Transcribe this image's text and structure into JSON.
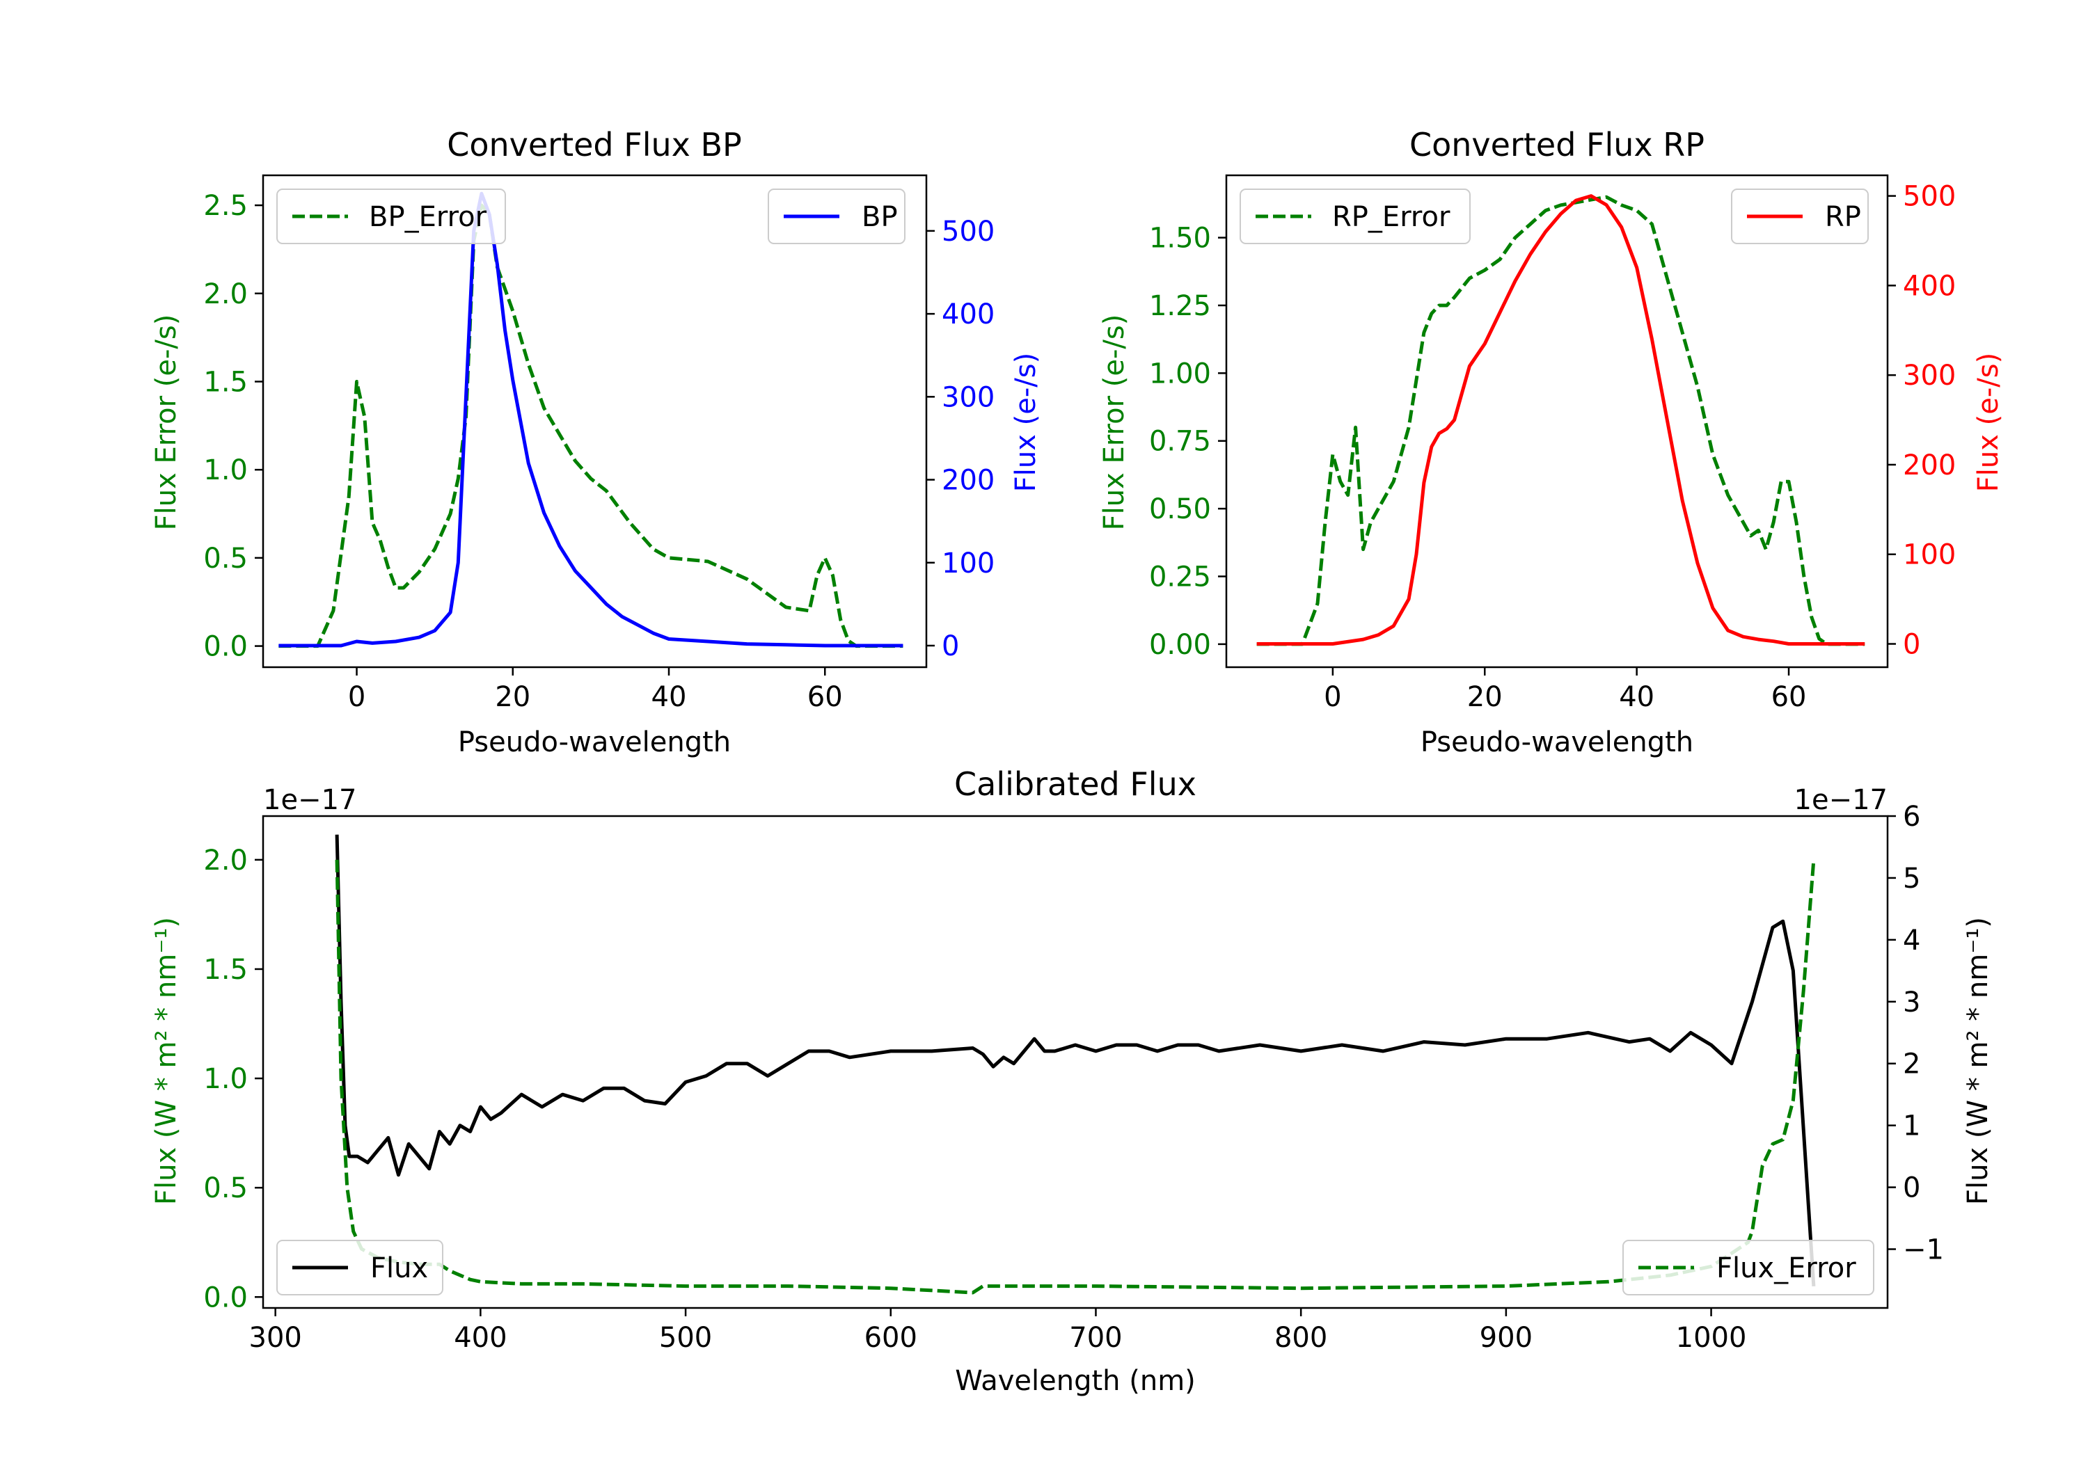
{
  "colors": {
    "green": "#008000",
    "blue": "#0000ff",
    "red": "#ff0000",
    "black": "#000000"
  },
  "chart_data": [
    {
      "type": "line",
      "title": "Converted Flux BP",
      "xlabel": "Pseudo-wavelength",
      "xlim": [
        -12,
        73
      ],
      "xticks": [
        0,
        20,
        40,
        60
      ],
      "left_axis": {
        "label": "Flux Error (e-/s)",
        "color": "#008000",
        "ylim": [
          -0.12,
          2.67
        ],
        "ticks": [
          "0.0",
          "0.5",
          "1.0",
          "1.5",
          "2.0",
          "2.5"
        ]
      },
      "right_axis": {
        "label": "Flux (e-/s)",
        "color": "#0000ff",
        "ylim": [
          -26,
          567
        ],
        "ticks": [
          "0",
          "100",
          "200",
          "300",
          "400",
          "500"
        ]
      },
      "series": [
        {
          "name": "BP_Error",
          "axis": "left",
          "color": "#008000",
          "dashed": true,
          "legend": "upper left",
          "x": [
            -10,
            -5,
            -3,
            -1,
            0,
            1,
            2,
            3,
            4,
            5,
            6,
            8,
            10,
            12,
            13,
            14,
            15,
            16,
            17,
            18,
            20,
            22,
            24,
            26,
            28,
            30,
            32,
            35,
            38,
            40,
            45,
            50,
            55,
            58,
            59,
            60,
            61,
            62,
            63,
            64,
            70
          ],
          "values": [
            0,
            0,
            0.2,
            0.85,
            1.5,
            1.3,
            0.7,
            0.6,
            0.45,
            0.33,
            0.33,
            0.42,
            0.55,
            0.75,
            0.95,
            1.3,
            2.3,
            2.5,
            2.45,
            2.15,
            1.9,
            1.6,
            1.35,
            1.2,
            1.05,
            0.95,
            0.88,
            0.7,
            0.55,
            0.5,
            0.48,
            0.38,
            0.22,
            0.2,
            0.4,
            0.5,
            0.4,
            0.15,
            0.03,
            0,
            0
          ]
        },
        {
          "name": "BP",
          "axis": "right",
          "color": "#0000ff",
          "dashed": false,
          "legend": "upper right",
          "x": [
            -10,
            -2,
            0,
            2,
            5,
            8,
            10,
            12,
            13,
            14,
            15,
            16,
            17,
            18,
            19,
            20,
            22,
            24,
            26,
            28,
            30,
            32,
            34,
            36,
            38,
            40,
            45,
            50,
            55,
            60,
            65,
            70
          ],
          "values": [
            0,
            0,
            5,
            3,
            5,
            10,
            18,
            40,
            100,
            300,
            500,
            545,
            520,
            460,
            380,
            320,
            220,
            160,
            120,
            90,
            70,
            50,
            35,
            25,
            15,
            8,
            5,
            2,
            1,
            0,
            0,
            0
          ]
        }
      ]
    },
    {
      "type": "line",
      "title": "Converted Flux RP",
      "xlabel": "Pseudo-wavelength",
      "xlim": [
        -14,
        73
      ],
      "xticks": [
        0,
        20,
        40,
        60
      ],
      "left_axis": {
        "label": "Flux Error (e-/s)",
        "color": "#008000",
        "ylim": [
          -0.085,
          1.73
        ],
        "ticks": [
          "0.00",
          "0.25",
          "0.50",
          "0.75",
          "1.00",
          "1.25",
          "1.50"
        ]
      },
      "right_axis": {
        "label": "Flux (e-/s)",
        "color": "#ff0000",
        "ylim": [
          -26,
          523
        ],
        "ticks": [
          "0",
          "100",
          "200",
          "300",
          "400",
          "500"
        ]
      },
      "series": [
        {
          "name": "RP_Error",
          "axis": "left",
          "color": "#008000",
          "dashed": true,
          "legend": "upper left",
          "x": [
            -10,
            -4,
            -2,
            -1,
            0,
            1,
            2,
            3,
            4,
            5,
            6,
            8,
            10,
            12,
            13,
            14,
            15,
            16,
            18,
            20,
            22,
            24,
            26,
            28,
            30,
            32,
            34,
            36,
            38,
            40,
            42,
            44,
            46,
            48,
            50,
            52,
            54,
            55,
            56,
            57,
            58,
            59,
            60,
            61,
            62,
            63,
            64,
            65,
            70
          ],
          "values": [
            0,
            0,
            0.15,
            0.45,
            0.7,
            0.6,
            0.55,
            0.8,
            0.35,
            0.45,
            0.5,
            0.6,
            0.8,
            1.15,
            1.22,
            1.25,
            1.25,
            1.28,
            1.35,
            1.38,
            1.42,
            1.5,
            1.55,
            1.6,
            1.62,
            1.63,
            1.64,
            1.65,
            1.62,
            1.6,
            1.55,
            1.35,
            1.15,
            0.95,
            0.7,
            0.55,
            0.45,
            0.4,
            0.42,
            0.35,
            0.45,
            0.6,
            0.6,
            0.45,
            0.25,
            0.1,
            0.02,
            0,
            0
          ]
        },
        {
          "name": "RP",
          "axis": "right",
          "color": "#ff0000",
          "dashed": false,
          "legend": "upper right",
          "x": [
            -10,
            0,
            4,
            6,
            8,
            10,
            11,
            12,
            13,
            14,
            15,
            16,
            18,
            20,
            22,
            24,
            26,
            28,
            30,
            32,
            34,
            36,
            38,
            40,
            42,
            44,
            46,
            48,
            50,
            52,
            54,
            56,
            58,
            60,
            65,
            70
          ],
          "values": [
            0,
            0,
            5,
            10,
            20,
            50,
            100,
            180,
            220,
            235,
            240,
            250,
            310,
            335,
            370,
            405,
            435,
            460,
            480,
            495,
            500,
            490,
            465,
            420,
            340,
            250,
            160,
            90,
            40,
            15,
            8,
            5,
            3,
            0,
            0,
            0
          ]
        }
      ]
    },
    {
      "type": "line",
      "title": "Calibrated Flux",
      "xlabel": "Wavelength (nm)",
      "xlim": [
        294,
        1086
      ],
      "xticks": [
        300,
        400,
        500,
        600,
        700,
        800,
        900,
        1000
      ],
      "left_axis": {
        "label": "Flux (W * m² * nm⁻¹)",
        "color": "#008000",
        "offset": "1e−17",
        "ylim": [
          -0.05,
          2.2
        ],
        "ticks": [
          "0.0",
          "0.5",
          "1.0",
          "1.5",
          "2.0"
        ]
      },
      "right_axis": {
        "label": "Flux (W * m² * nm⁻¹)",
        "color": "#000000",
        "offset": "1e−17",
        "ylim": [
          -1.95,
          6.0
        ],
        "ticks": [
          "−1",
          "0",
          "1",
          "2",
          "3",
          "4",
          "5",
          "6"
        ]
      },
      "series": [
        {
          "name": "Flux",
          "axis": "right",
          "color": "#000000",
          "dashed": false,
          "legend": "lower left",
          "x": [
            330,
            332,
            334,
            336,
            340,
            345,
            350,
            355,
            360,
            365,
            370,
            375,
            380,
            385,
            390,
            395,
            400,
            405,
            410,
            420,
            430,
            440,
            450,
            460,
            470,
            480,
            490,
            500,
            510,
            520,
            530,
            540,
            550,
            560,
            570,
            580,
            600,
            620,
            640,
            645,
            650,
            655,
            660,
            670,
            675,
            680,
            690,
            700,
            710,
            720,
            730,
            740,
            750,
            760,
            780,
            800,
            820,
            840,
            860,
            880,
            900,
            920,
            940,
            960,
            970,
            980,
            990,
            1000,
            1010,
            1020,
            1030,
            1035,
            1040,
            1050
          ],
          "values": [
            5.7,
            3.0,
            1.0,
            0.5,
            0.5,
            0.4,
            0.6,
            0.8,
            0.2,
            0.7,
            0.5,
            0.3,
            0.9,
            0.7,
            1.0,
            0.9,
            1.3,
            1.1,
            1.2,
            1.5,
            1.3,
            1.5,
            1.4,
            1.6,
            1.6,
            1.4,
            1.35,
            1.7,
            1.8,
            2.0,
            2.0,
            1.8,
            2.0,
            2.2,
            2.2,
            2.1,
            2.2,
            2.2,
            2.25,
            2.15,
            1.95,
            2.1,
            2.0,
            2.4,
            2.2,
            2.2,
            2.3,
            2.2,
            2.3,
            2.3,
            2.2,
            2.3,
            2.3,
            2.2,
            2.3,
            2.2,
            2.3,
            2.2,
            2.35,
            2.3,
            2.4,
            2.4,
            2.5,
            2.35,
            2.4,
            2.2,
            2.5,
            2.3,
            2.0,
            3.0,
            4.2,
            4.3,
            3.5,
            -1.6
          ]
        },
        {
          "name": "Flux_Error",
          "axis": "left",
          "color": "#008000",
          "dashed": true,
          "legend": "lower right",
          "x": [
            330,
            332,
            335,
            338,
            342,
            350,
            360,
            370,
            380,
            385,
            390,
            395,
            400,
            420,
            450,
            500,
            550,
            600,
            640,
            645,
            700,
            800,
            900,
            950,
            980,
            1000,
            1010,
            1018,
            1020,
            1025,
            1030,
            1035,
            1040,
            1045,
            1050
          ],
          "values": [
            2.0,
            1.0,
            0.5,
            0.3,
            0.22,
            0.18,
            0.16,
            0.15,
            0.15,
            0.12,
            0.1,
            0.08,
            0.07,
            0.06,
            0.06,
            0.05,
            0.05,
            0.04,
            0.02,
            0.05,
            0.05,
            0.04,
            0.05,
            0.07,
            0.1,
            0.14,
            0.2,
            0.25,
            0.3,
            0.6,
            0.7,
            0.72,
            0.9,
            1.4,
            2.0
          ]
        }
      ]
    }
  ]
}
